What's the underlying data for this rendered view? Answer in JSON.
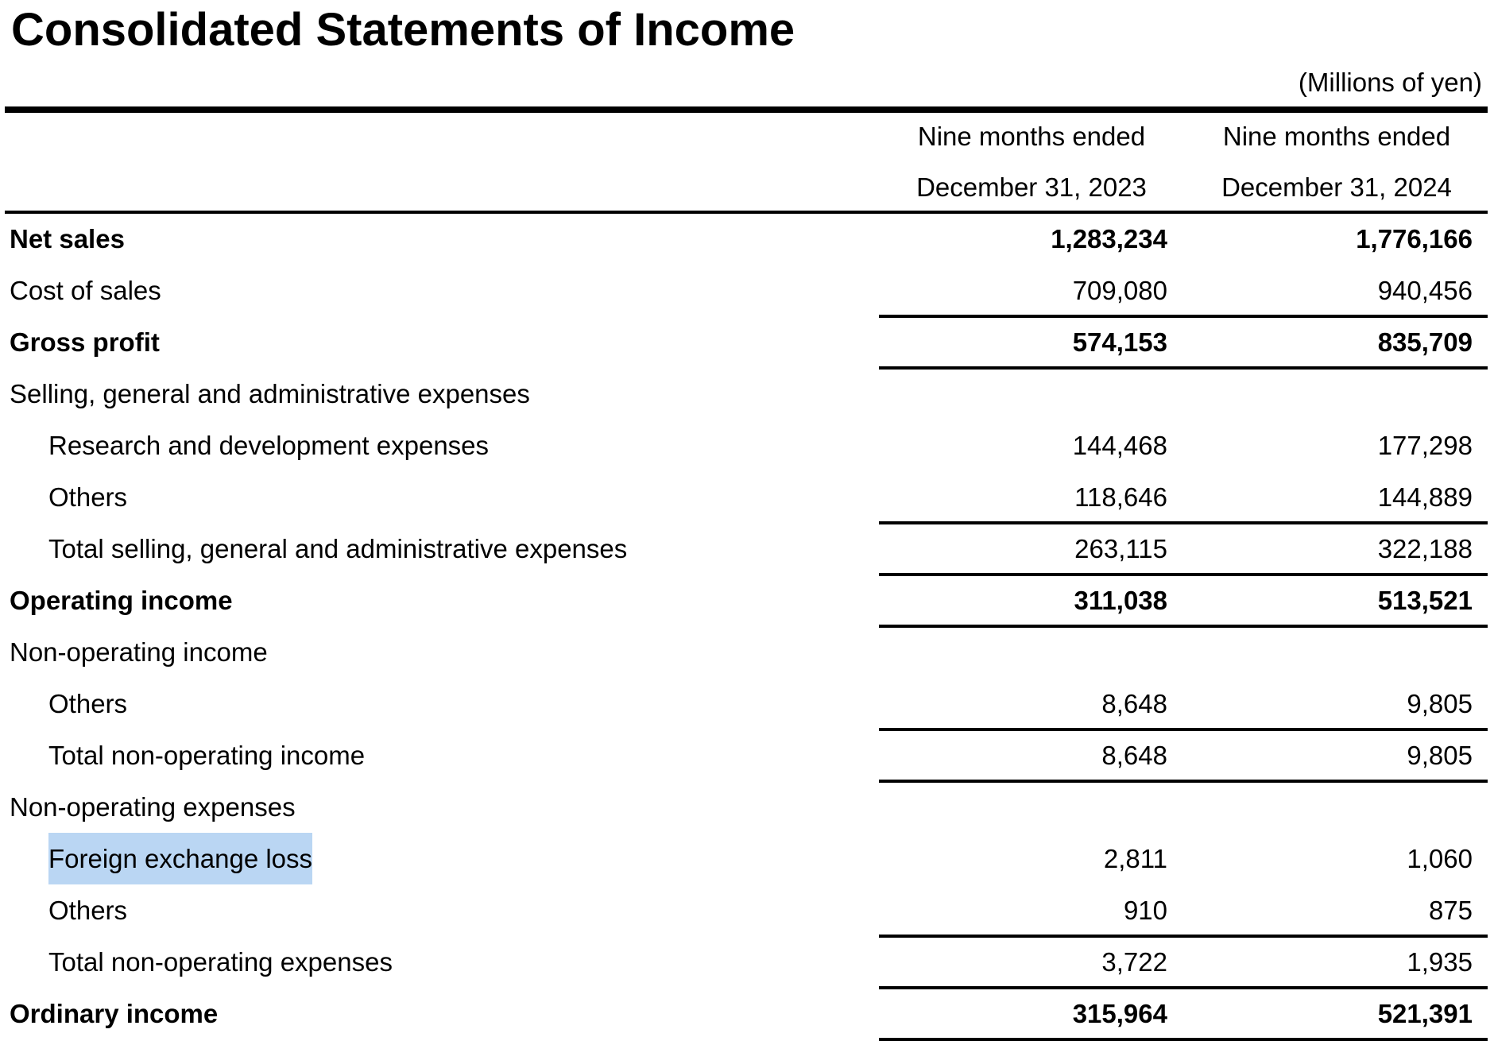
{
  "document": {
    "title": "Consolidated Statements of Income",
    "units_note": "(Millions of yen)"
  },
  "columns": [
    {
      "line1": "Nine months ended",
      "line2": "December 31, 2023"
    },
    {
      "line1": "Nine months ended",
      "line2": "December 31, 2024"
    }
  ],
  "rows": [
    {
      "label": "Net sales",
      "v2023": "1,283,234",
      "v2024": "1,776,166"
    },
    {
      "label": "Cost of sales",
      "v2023": "709,080",
      "v2024": "940,456"
    },
    {
      "label": "Gross profit",
      "v2023": "574,153",
      "v2024": "835,709"
    },
    {
      "label": "Selling, general and administrative expenses",
      "v2023": "",
      "v2024": ""
    },
    {
      "label": "Research and development expenses",
      "v2023": "144,468",
      "v2024": "177,298"
    },
    {
      "label": "Others",
      "v2023": "118,646",
      "v2024": "144,889"
    },
    {
      "label": "Total selling, general and administrative expenses",
      "v2023": "263,115",
      "v2024": "322,188"
    },
    {
      "label": "Operating income",
      "v2023": "311,038",
      "v2024": "513,521"
    },
    {
      "label": "Non-operating income",
      "v2023": "",
      "v2024": ""
    },
    {
      "label": "Others",
      "v2023": "8,648",
      "v2024": "9,805"
    },
    {
      "label": "Total non-operating income",
      "v2023": "8,648",
      "v2024": "9,805"
    },
    {
      "label": "Non-operating expenses",
      "v2023": "",
      "v2024": ""
    },
    {
      "label": "Foreign exchange loss",
      "v2023": "2,811",
      "v2024": "1,060"
    },
    {
      "label": "Others",
      "v2023": "910",
      "v2024": "875"
    },
    {
      "label": "Total non-operating expenses",
      "v2023": "3,722",
      "v2024": "1,935"
    },
    {
      "label": "Ordinary income",
      "v2023": "315,964",
      "v2024": "521,391"
    }
  ],
  "selection": {
    "highlight_color": "#bad6f3"
  }
}
